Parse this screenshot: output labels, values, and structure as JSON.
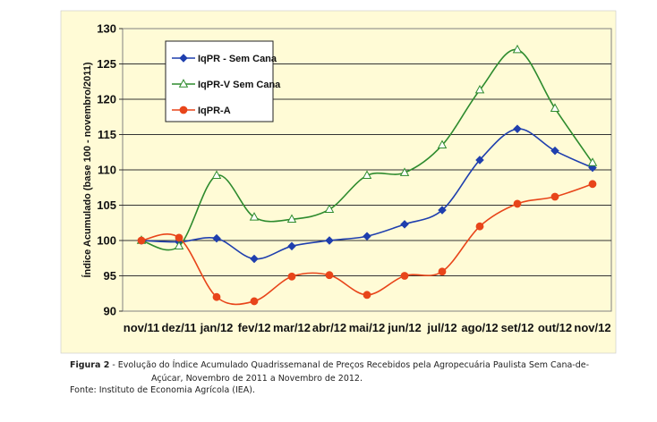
{
  "chart_data": {
    "type": "line",
    "categories": [
      "nov/11",
      "dez/11",
      "jan/12",
      "fev/12",
      "mar/12",
      "abr/12",
      "mai/12",
      "jun/12",
      "jul/12",
      "ago/12",
      "set/12",
      "out/12",
      "nov/12"
    ],
    "ylabel": "Índice Acumulado (base 100 - novembro/2011)",
    "ylim": [
      90,
      130
    ],
    "yticks": [
      90,
      95,
      100,
      105,
      110,
      115,
      120,
      125,
      130
    ],
    "grid": true,
    "legend_position": "top-left",
    "background": "#fffbd6",
    "series": [
      {
        "name": "IqPR - Sem Cana",
        "color": "#1f3fae",
        "marker": "diamond",
        "values": [
          100.0,
          99.8,
          100.3,
          97.4,
          99.2,
          100.0,
          100.6,
          102.3,
          104.3,
          111.4,
          115.8,
          112.7,
          110.3
        ]
      },
      {
        "name": "IqPR-V Sem Cana",
        "color": "#2e8b2e",
        "marker": "triangle",
        "values": [
          100.0,
          99.2,
          109.2,
          103.3,
          103.0,
          104.4,
          109.2,
          109.6,
          113.5,
          121.3,
          127.0,
          118.7,
          111.0
        ]
      },
      {
        "name": "IqPR-A",
        "color": "#e8451a",
        "marker": "circle",
        "values": [
          100.0,
          100.4,
          92.0,
          91.4,
          94.9,
          95.1,
          92.3,
          95.0,
          95.6,
          102.0,
          105.2,
          106.2,
          108.0
        ]
      }
    ]
  },
  "caption": {
    "figure_label": "Figura 2",
    "text_line1": " - Evolução do Índice Acumulado Quadrissemanal de Preços Recebidos pela Agropecuária Paulista Sem Cana-de-",
    "text_line2": "Açúcar, Novembro de 2011 a Novembro de 2012."
  },
  "source": "Fonte: Instituto de Economia Agrícola (IEA)."
}
